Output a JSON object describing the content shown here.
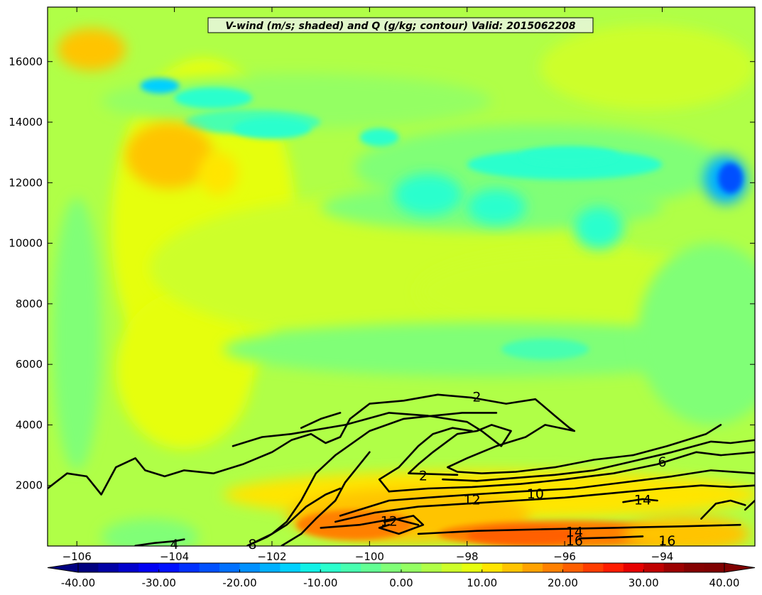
{
  "chart_data": {
    "type": "heatmap",
    "title": "V-wind (m/s; shaded) and Q (g/kg; contour) Valid: 2015062208",
    "xlabel": "",
    "ylabel": "",
    "xlim": [
      -106.6,
      -92.1
    ],
    "ylim": [
      0,
      17800
    ],
    "xticks": [
      -106,
      -104,
      -102,
      -100,
      -98,
      -96,
      -94
    ],
    "xtick_labels": [
      "−106",
      "−104",
      "−102",
      "−100",
      "−98",
      "−96",
      "−94"
    ],
    "yticks": [
      2000,
      4000,
      6000,
      8000,
      10000,
      12000,
      14000,
      16000
    ],
    "ytick_labels": [
      "2000",
      "4000",
      "6000",
      "8000",
      "10000",
      "12000",
      "14000",
      "16000"
    ],
    "background_value": 4,
    "shaded_features": [
      {
        "x": -103.4,
        "y": 10500,
        "rx": 1.9,
        "ry": 5600,
        "v": 8
      },
      {
        "x": -103.8,
        "y": 5800,
        "rx": 1.4,
        "ry": 2600,
        "v": 8
      },
      {
        "x": -99.5,
        "y": 9200,
        "rx": 5.0,
        "ry": 2400,
        "v": 6
      },
      {
        "x": -95.5,
        "y": 8400,
        "rx": 3.5,
        "ry": 1400,
        "v": 6
      },
      {
        "x": -94.3,
        "y": 15800,
        "rx": 2.2,
        "ry": 1400,
        "v": 6
      },
      {
        "x": -101.5,
        "y": 14700,
        "rx": 4.0,
        "ry": 900,
        "v": 0
      },
      {
        "x": -96.5,
        "y": 12500,
        "rx": 3.8,
        "ry": 1400,
        "v": -2
      },
      {
        "x": -97.5,
        "y": 11200,
        "rx": 3.5,
        "ry": 800,
        "v": -2
      },
      {
        "x": -97.5,
        "y": 6500,
        "rx": 5.5,
        "ry": 900,
        "v": -1
      },
      {
        "x": -93.0,
        "y": 7000,
        "rx": 1.5,
        "ry": 3000,
        "v": -1
      },
      {
        "x": -106.0,
        "y": 7000,
        "rx": 0.5,
        "ry": 4500,
        "v": -1
      },
      {
        "x": -104.5,
        "y": 300,
        "rx": 1.0,
        "ry": 600,
        "v": -2
      },
      {
        "x": -102.4,
        "y": 14000,
        "rx": 1.4,
        "ry": 400,
        "v": -6
      },
      {
        "x": -102.0,
        "y": 13800,
        "rx": 0.8,
        "ry": 350,
        "v": -9
      },
      {
        "x": -103.2,
        "y": 14800,
        "rx": 0.8,
        "ry": 350,
        "v": -10
      },
      {
        "x": -104.3,
        "y": 15200,
        "rx": 0.4,
        "ry": 250,
        "v": -13
      },
      {
        "x": -96.0,
        "y": 12600,
        "rx": 2.0,
        "ry": 500,
        "v": -8
      },
      {
        "x": -95.9,
        "y": 12900,
        "rx": 1.0,
        "ry": 300,
        "v": -9
      },
      {
        "x": -98.8,
        "y": 11600,
        "rx": 0.7,
        "ry": 700,
        "v": -9
      },
      {
        "x": -97.4,
        "y": 11200,
        "rx": 0.6,
        "ry": 600,
        "v": -8
      },
      {
        "x": -95.3,
        "y": 10500,
        "rx": 0.5,
        "ry": 700,
        "v": -9
      },
      {
        "x": -99.8,
        "y": 13500,
        "rx": 0.4,
        "ry": 300,
        "v": -8
      },
      {
        "x": -96.4,
        "y": 6500,
        "rx": 0.9,
        "ry": 350,
        "v": -7
      },
      {
        "x": -92.7,
        "y": 12100,
        "rx": 0.45,
        "ry": 800,
        "v": -16
      },
      {
        "x": -92.6,
        "y": 12150,
        "rx": 0.25,
        "ry": 500,
        "v": -24
      },
      {
        "x": -105.7,
        "y": 16400,
        "rx": 0.7,
        "ry": 700,
        "v": 13
      },
      {
        "x": -104.1,
        "y": 12900,
        "rx": 0.9,
        "ry": 1100,
        "v": 14
      },
      {
        "x": -103.1,
        "y": 12300,
        "rx": 0.4,
        "ry": 700,
        "v": 12
      },
      {
        "x": -97.5,
        "y": 1700,
        "rx": 5.5,
        "ry": 800,
        "v": 10
      },
      {
        "x": -99.2,
        "y": 1000,
        "rx": 2.5,
        "ry": 900,
        "v": 14
      },
      {
        "x": -100.3,
        "y": 700,
        "rx": 1.2,
        "ry": 500,
        "v": 19
      },
      {
        "x": -96.0,
        "y": 400,
        "rx": 2.6,
        "ry": 450,
        "v": 18
      },
      {
        "x": -96.8,
        "y": 350,
        "rx": 1.2,
        "ry": 300,
        "v": 22
      },
      {
        "x": -93.5,
        "y": 400,
        "rx": 1.3,
        "ry": 600,
        "v": 13
      }
    ],
    "contours": [
      {
        "level": "2",
        "points": [
          [
            -106.6,
            1900
          ],
          [
            -106.2,
            2400
          ],
          [
            -105.8,
            2300
          ],
          [
            -105.5,
            1700
          ],
          [
            -105.2,
            2600
          ],
          [
            -104.8,
            2900
          ],
          [
            -104.6,
            2500
          ],
          [
            -104.2,
            2300
          ],
          [
            -103.8,
            2500
          ],
          [
            -103.2,
            2400
          ],
          [
            -102.6,
            2700
          ],
          [
            -102.0,
            3100
          ],
          [
            -101.6,
            3500
          ],
          [
            -101.2,
            3700
          ],
          [
            -100.9,
            3400
          ],
          [
            -100.6,
            3600
          ],
          [
            -100.4,
            4200
          ],
          [
            -100.0,
            4700
          ],
          [
            -99.3,
            4800
          ],
          [
            -98.6,
            5000
          ],
          [
            -97.9,
            4900
          ],
          [
            -97.2,
            4700
          ],
          [
            -96.6,
            4850
          ],
          [
            -96.2,
            4300
          ],
          [
            -95.9,
            3900
          ],
          [
            -95.8,
            3800
          ],
          [
            -96.4,
            4000
          ],
          [
            -96.8,
            3600
          ],
          [
            -97.4,
            3300
          ],
          [
            -98.0,
            2900
          ],
          [
            -98.4,
            2600
          ],
          [
            -98.2,
            2450
          ],
          [
            -97.7,
            2400
          ],
          [
            -97.0,
            2450
          ],
          [
            -96.2,
            2600
          ],
          [
            -95.4,
            2850
          ],
          [
            -94.6,
            3000
          ],
          [
            -93.9,
            3300
          ],
          [
            -93.1,
            3700
          ],
          [
            -92.8,
            4000
          ]
        ]
      },
      {
        "level": "2",
        "points": [
          [
            -98.2,
            2350
          ],
          [
            -99.2,
            2400
          ],
          [
            -99.0,
            2700
          ],
          [
            -98.7,
            3100
          ],
          [
            -98.2,
            3700
          ],
          [
            -97.8,
            3800
          ],
          [
            -97.5,
            4000
          ],
          [
            -97.1,
            3800
          ],
          [
            -97.3,
            3300
          ],
          [
            -97.7,
            3800
          ],
          [
            -98.0,
            4100
          ],
          [
            -98.8,
            4300
          ],
          [
            -99.6,
            4400
          ],
          [
            -100.5,
            4000
          ],
          [
            -101.6,
            3700
          ],
          [
            -102.2,
            3600
          ],
          [
            -102.8,
            3300
          ]
        ]
      },
      {
        "level": "",
        "points": [
          [
            -101.4,
            3900
          ],
          [
            -101.0,
            4200
          ],
          [
            -100.6,
            4400
          ]
        ]
      },
      {
        "level": "4",
        "points": [
          [
            -104.8,
            10
          ],
          [
            -104.4,
            100
          ],
          [
            -104.0,
            160
          ],
          [
            -103.8,
            220
          ]
        ]
      },
      {
        "level": "4",
        "points": [
          [
            -102.5,
            10
          ],
          [
            -102.0,
            400
          ],
          [
            -101.7,
            800
          ],
          [
            -101.4,
            1500
          ],
          [
            -101.1,
            2400
          ],
          [
            -100.7,
            3000
          ],
          [
            -100.0,
            3800
          ],
          [
            -99.3,
            4200
          ],
          [
            -98.7,
            4300
          ],
          [
            -98.1,
            4400
          ],
          [
            -97.4,
            4400
          ]
        ]
      },
      {
        "level": "4",
        "points": [
          [
            -99.6,
            1800
          ],
          [
            -99.8,
            2200
          ],
          [
            -99.4,
            2600
          ],
          [
            -99.0,
            3300
          ],
          [
            -98.7,
            3700
          ],
          [
            -98.3,
            3900
          ],
          [
            -97.9,
            3800
          ]
        ]
      },
      {
        "level": "6",
        "points": [
          [
            -101.8,
            10
          ],
          [
            -101.4,
            400
          ],
          [
            -101.1,
            900
          ],
          [
            -100.7,
            1500
          ],
          [
            -100.5,
            2100
          ],
          [
            -100.2,
            2700
          ],
          [
            -100.0,
            3100
          ]
        ]
      },
      {
        "level": "6",
        "points": [
          [
            -98.5,
            2200
          ],
          [
            -97.8,
            2150
          ],
          [
            -97.0,
            2250
          ],
          [
            -96.2,
            2350
          ],
          [
            -95.4,
            2500
          ],
          [
            -94.6,
            2800
          ],
          [
            -93.8,
            3100
          ],
          [
            -93.0,
            3450
          ],
          [
            -92.6,
            3400
          ],
          [
            -92.1,
            3500
          ]
        ]
      },
      {
        "level": "8",
        "points": [
          [
            -102.5,
            10
          ],
          [
            -102.1,
            300
          ],
          [
            -101.7,
            700
          ],
          [
            -101.3,
            1300
          ],
          [
            -100.9,
            1700
          ],
          [
            -100.6,
            1900
          ]
        ]
      },
      {
        "level": "8",
        "points": [
          [
            -99.6,
            1800
          ],
          [
            -98.8,
            1900
          ],
          [
            -97.9,
            1950
          ],
          [
            -96.9,
            2050
          ],
          [
            -96.0,
            2200
          ],
          [
            -95.0,
            2400
          ],
          [
            -94.1,
            2700
          ],
          [
            -93.3,
            3100
          ],
          [
            -92.8,
            3000
          ],
          [
            -92.1,
            3100
          ]
        ]
      },
      {
        "level": "10",
        "points": [
          [
            -100.6,
            1000
          ],
          [
            -100.2,
            1200
          ],
          [
            -99.6,
            1500
          ],
          [
            -98.8,
            1600
          ],
          [
            -97.9,
            1700
          ],
          [
            -96.9,
            1800
          ],
          [
            -95.8,
            1900
          ],
          [
            -94.8,
            2100
          ],
          [
            -93.8,
            2300
          ],
          [
            -93.0,
            2500
          ],
          [
            -92.1,
            2400
          ]
        ]
      },
      {
        "level": "12",
        "points": [
          [
            -100.7,
            800
          ],
          [
            -99.9,
            1100
          ],
          [
            -99.0,
            1300
          ],
          [
            -98.0,
            1400
          ],
          [
            -97.0,
            1500
          ],
          [
            -96.0,
            1600
          ],
          [
            -95.0,
            1750
          ],
          [
            -94.0,
            1900
          ],
          [
            -93.2,
            2000
          ],
          [
            -92.6,
            1950
          ],
          [
            -92.1,
            2000
          ]
        ]
      },
      {
        "level": "12",
        "points": [
          [
            -99.7,
            800
          ],
          [
            -99.1,
            1000
          ],
          [
            -98.9,
            700
          ],
          [
            -99.4,
            400
          ],
          [
            -99.8,
            600
          ],
          [
            -99.6,
            700
          ]
        ]
      },
      {
        "level": "14",
        "points": [
          [
            -101.0,
            600
          ],
          [
            -100.2,
            700
          ],
          [
            -99.5,
            900
          ],
          [
            -99.0,
            700
          ]
        ]
      },
      {
        "level": "14",
        "points": [
          [
            -99.0,
            400
          ],
          [
            -97.8,
            500
          ],
          [
            -96.5,
            550
          ],
          [
            -95.0,
            600
          ],
          [
            -93.6,
            650
          ],
          [
            -92.4,
            700
          ]
        ]
      },
      {
        "level": "14",
        "points": [
          [
            -94.8,
            1450
          ],
          [
            -94.4,
            1550
          ],
          [
            -94.1,
            1500
          ]
        ]
      },
      {
        "level": "16",
        "points": [
          [
            -95.7,
            250
          ],
          [
            -95.0,
            280
          ],
          [
            -94.4,
            320
          ]
        ]
      },
      {
        "level": "",
        "points": [
          [
            -93.2,
            900
          ],
          [
            -92.9,
            1400
          ],
          [
            -92.6,
            1500
          ],
          [
            -92.3,
            1350
          ]
        ]
      },
      {
        "level": "",
        "points": [
          [
            -92.3,
            1200
          ],
          [
            -92.1,
            1500
          ]
        ]
      }
    ],
    "contour_labels": [
      {
        "text": "2",
        "x": -97.8,
        "y": 4900
      },
      {
        "text": "2",
        "x": -98.9,
        "y": 2300
      },
      {
        "text": "6",
        "x": -94.0,
        "y": 2750
      },
      {
        "text": "10",
        "x": -96.6,
        "y": 1700
      },
      {
        "text": "12",
        "x": -97.9,
        "y": 1500
      },
      {
        "text": "12",
        "x": -99.6,
        "y": 800
      },
      {
        "text": "14",
        "x": -94.4,
        "y": 1500
      },
      {
        "text": "14",
        "x": -95.8,
        "y": 450
      },
      {
        "text": "16",
        "x": -95.8,
        "y": 150
      },
      {
        "text": "16",
        "x": -93.9,
        "y": 150
      },
      {
        "text": "4",
        "x": -104.0,
        "y": 40
      },
      {
        "text": "8",
        "x": -102.4,
        "y": 40
      }
    ],
    "colorbar": {
      "min": -40,
      "max": 40,
      "step": 2.5,
      "extend": "both",
      "tick_values": [
        -40,
        -30,
        -20,
        -10,
        0,
        10,
        20,
        30,
        40
      ],
      "tick_labels": [
        "-40.00",
        "-30.00",
        "-20.00",
        "-10.00",
        "0.00",
        "10.00",
        "20.00",
        "30.00",
        "40.00"
      ],
      "colors": [
        "#00007f",
        "#0000a5",
        "#0000cc",
        "#0000f2",
        "#0010ff",
        "#0030ff",
        "#0050ff",
        "#0070ff",
        "#0090ff",
        "#00b0ff",
        "#00d0ff",
        "#10f0e6",
        "#2affcd",
        "#47ffb0",
        "#63ff94",
        "#80ff77",
        "#94ff63",
        "#b0ff47",
        "#cdff2a",
        "#e6ff10",
        "#ffe500",
        "#ffc400",
        "#ffa200",
        "#ff8000",
        "#ff5f00",
        "#ff3d00",
        "#ff1c00",
        "#e60000",
        "#c00000",
        "#9c0000",
        "#840000",
        "#7f0000"
      ],
      "under_color": "#000080",
      "over_color": "#800000"
    }
  }
}
